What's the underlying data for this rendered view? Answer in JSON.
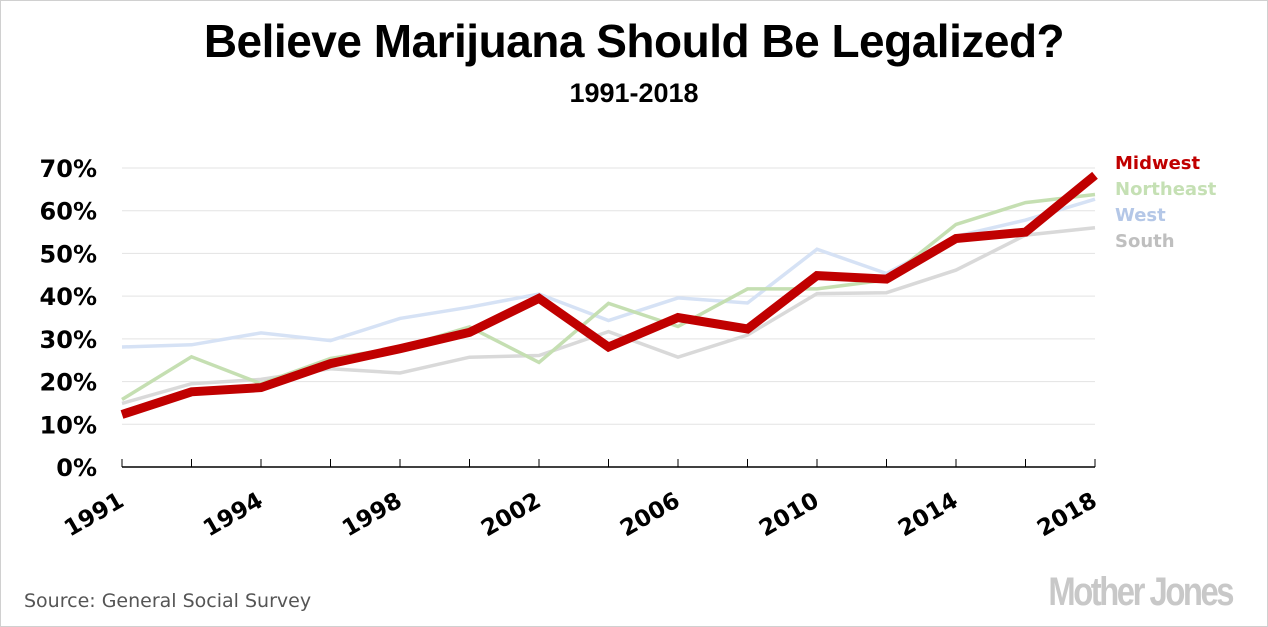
{
  "chart_data": {
    "type": "line",
    "title": "Believe Marijuana Should Be Legalized?",
    "subtitle": "1991-2018",
    "xlabel": "",
    "ylabel": "",
    "x": [
      1991,
      1993,
      1994,
      1996,
      1998,
      2000,
      2002,
      2004,
      2006,
      2008,
      2010,
      2012,
      2014,
      2016,
      2018
    ],
    "x_tick_labels": [
      "1991",
      "1994",
      "1998",
      "2002",
      "2006",
      "2010",
      "2014",
      "2018"
    ],
    "x_tick_label_years": [
      1991,
      1994,
      1998,
      2002,
      2006,
      2010,
      2014,
      2018
    ],
    "y_tick_labels": [
      "0%",
      "10%",
      "20%",
      "30%",
      "40%",
      "50%",
      "60%",
      "70%"
    ],
    "y_ticks": [
      0,
      10,
      20,
      30,
      40,
      50,
      60,
      70
    ],
    "ylim": [
      0,
      70
    ],
    "grid": true,
    "legend_position": "right",
    "series": [
      {
        "name": "South",
        "color": "#d9d9d9",
        "legend_color": "#bfbfbf",
        "values": [
          14.9,
          19.5,
          20.5,
          23.0,
          22.0,
          25.7,
          26.1,
          31.7,
          25.7,
          30.9,
          40.6,
          40.8,
          46.1,
          54.3,
          56.0
        ]
      },
      {
        "name": "West",
        "color": "#d6e2f5",
        "legend_color": "#b4c7e7",
        "values": [
          28.1,
          28.6,
          31.4,
          29.6,
          34.8,
          37.4,
          40.5,
          34.3,
          39.6,
          38.4,
          51.0,
          45.3,
          54.0,
          57.8,
          62.7
        ]
      },
      {
        "name": "Northeast",
        "color": "#c5dfb2",
        "legend_color": "#c5e0b4",
        "values": [
          15.8,
          25.8,
          19.5,
          25.4,
          27.9,
          32.8,
          24.5,
          38.3,
          32.9,
          41.7,
          41.7,
          43.8,
          56.8,
          61.9,
          63.8
        ]
      },
      {
        "name": "Midwest",
        "color": "#c00000",
        "legend_color": "#c00000",
        "values": [
          12.3,
          17.6,
          18.6,
          24.2,
          27.7,
          31.5,
          39.5,
          28.1,
          35.0,
          32.3,
          44.8,
          44.0,
          53.5,
          55.0,
          68.3
        ]
      }
    ],
    "legend_order": [
      "Midwest",
      "Northeast",
      "West",
      "South"
    ]
  },
  "footer": {
    "source": "Source: General Social Survey",
    "logo": "Mother Jones"
  }
}
